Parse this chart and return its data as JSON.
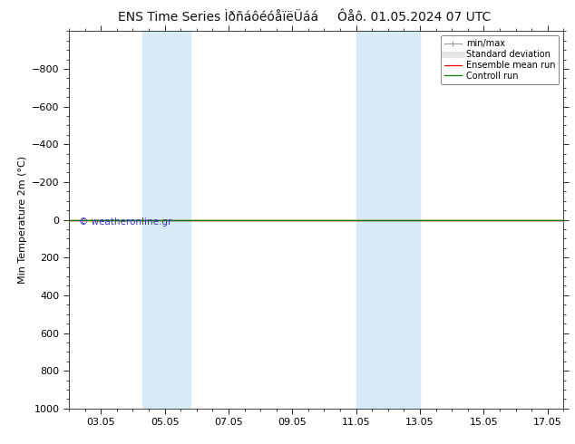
{
  "title_left": "ENS Time Series ÌðñáôéóåïëÜáá",
  "title_right": "Ôåô. 01.05.2024 07 UTC",
  "ylabel": "Min Temperature 2m (°C)",
  "background_color": "#ffffff",
  "plot_bg_color": "#ffffff",
  "ylim_min": -1000,
  "ylim_max": 1000,
  "y_ticks": [
    -800,
    -600,
    -400,
    -200,
    0,
    200,
    400,
    600,
    800,
    1000
  ],
  "x_min": 2.0,
  "x_max": 17.5,
  "x_tick_labels": [
    "03.05",
    "05.05",
    "07.05",
    "09.05",
    "11.05",
    "13.05",
    "15.05",
    "17.05"
  ],
  "x_tick_positions": [
    3,
    5,
    7,
    9,
    11,
    13,
    15,
    17
  ],
  "shade_bands": [
    {
      "x_start": 4.3,
      "x_end": 5.8
    },
    {
      "x_start": 11.0,
      "x_end": 13.0
    }
  ],
  "shade_color": "#d6eaf8",
  "green_line_y": 0,
  "red_line_y": 0,
  "green_line_color": "#008000",
  "red_line_color": "#ff0000",
  "watermark": "© weatheronline.gr",
  "watermark_color": "#3333bb",
  "legend_labels": [
    "min/max",
    "Standard deviation",
    "Ensemble mean run",
    "Controll run"
  ],
  "legend_line_colors": [
    "#999999",
    "#cccccc",
    "#ff0000",
    "#008000"
  ],
  "title_fontsize": 10,
  "axis_fontsize": 8,
  "tick_fontsize": 8,
  "legend_fontsize": 7
}
